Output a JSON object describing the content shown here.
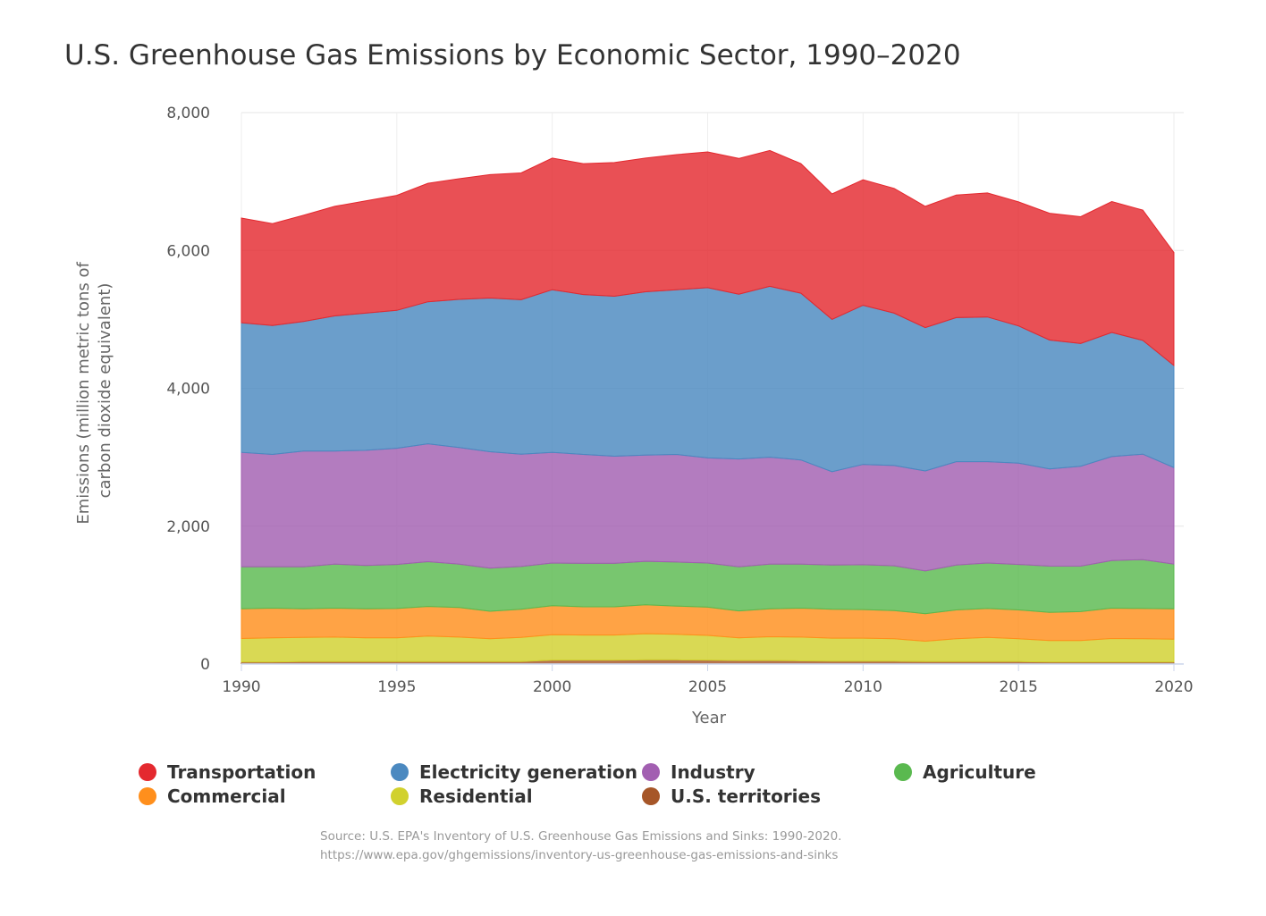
{
  "chart_data": {
    "type": "area",
    "stacked": true,
    "title": "U.S. Greenhouse Gas Emissions by Economic Sector, 1990–2020",
    "xlabel": "Year",
    "ylabel_lines": [
      "Emissions (million metric tons of",
      "carbon dioxide equivalent)"
    ],
    "ylim": [
      0,
      8000
    ],
    "yticks": [
      0,
      2000,
      4000,
      6000,
      8000
    ],
    "ytick_labels": [
      "0",
      "2,000",
      "4,000",
      "6,000",
      "8,000"
    ],
    "xticks": [
      1990,
      1995,
      2000,
      2005,
      2010,
      2015,
      2020
    ],
    "xtick_labels": [
      "1990",
      "1995",
      "2000",
      "2005",
      "2010",
      "2015",
      "2020"
    ],
    "grid": true,
    "legend_position": "bottom",
    "x": [
      1990,
      1991,
      1992,
      1993,
      1994,
      1995,
      1996,
      1997,
      1998,
      1999,
      2000,
      2001,
      2002,
      2003,
      2004,
      2005,
      2006,
      2007,
      2008,
      2009,
      2010,
      2011,
      2012,
      2013,
      2014,
      2015,
      2016,
      2017,
      2018,
      2019,
      2020
    ],
    "series": [
      {
        "name": "U.S. territories",
        "color": "#a65628",
        "values": [
          30,
          30,
          35,
          35,
          35,
          35,
          35,
          35,
          35,
          35,
          55,
          55,
          55,
          60,
          60,
          55,
          50,
          50,
          45,
          40,
          40,
          40,
          35,
          35,
          35,
          35,
          30,
          30,
          30,
          30,
          30
        ]
      },
      {
        "name": "Residential",
        "color": "#d1d12e",
        "values": [
          340,
          350,
          350,
          355,
          345,
          345,
          370,
          355,
          330,
          350,
          370,
          365,
          365,
          380,
          370,
          360,
          330,
          345,
          345,
          335,
          335,
          325,
          295,
          330,
          350,
          330,
          310,
          310,
          340,
          335,
          330
        ]
      },
      {
        "name": "Commercial",
        "color": "#ff8f1c",
        "values": [
          430,
          430,
          415,
          420,
          420,
          425,
          430,
          430,
          400,
          410,
          420,
          410,
          410,
          420,
          410,
          410,
          390,
          405,
          420,
          420,
          415,
          410,
          400,
          420,
          420,
          420,
          410,
          420,
          440,
          440,
          440
        ]
      },
      {
        "name": "Agriculture",
        "color": "#5ab94f",
        "values": [
          610,
          600,
          610,
          640,
          630,
          640,
          650,
          630,
          625,
          620,
          620,
          630,
          630,
          630,
          640,
          640,
          640,
          650,
          640,
          640,
          650,
          650,
          620,
          650,
          660,
          660,
          670,
          660,
          690,
          710,
          650
        ]
      },
      {
        "name": "Industry",
        "color": "#a25fb1",
        "values": [
          1660,
          1630,
          1680,
          1640,
          1670,
          1685,
          1710,
          1690,
          1690,
          1630,
          1605,
          1580,
          1555,
          1540,
          1560,
          1525,
          1565,
          1550,
          1510,
          1355,
          1455,
          1455,
          1450,
          1500,
          1470,
          1470,
          1410,
          1450,
          1510,
          1530,
          1400
        ]
      },
      {
        "name": "Electricity generation",
        "color": "#4b89c0",
        "values": [
          1880,
          1870,
          1880,
          1960,
          1990,
          2000,
          2060,
          2150,
          2230,
          2240,
          2360,
          2320,
          2320,
          2370,
          2390,
          2470,
          2390,
          2480,
          2420,
          2210,
          2310,
          2210,
          2080,
          2090,
          2100,
          1990,
          1870,
          1780,
          1800,
          1650,
          1480
        ]
      },
      {
        "name": "Transportation",
        "color": "#e4292f",
        "values": [
          1520,
          1480,
          1540,
          1590,
          1630,
          1670,
          1720,
          1750,
          1790,
          1840,
          1910,
          1900,
          1940,
          1940,
          1960,
          1970,
          1970,
          1970,
          1880,
          1820,
          1820,
          1810,
          1760,
          1780,
          1800,
          1800,
          1840,
          1840,
          1900,
          1890,
          1640
        ]
      }
    ]
  },
  "legend": {
    "items": [
      {
        "name": "Transportation",
        "color": "#e4292f"
      },
      {
        "name": "Electricity generation",
        "color": "#4b89c0"
      },
      {
        "name": "Industry",
        "color": "#a25fb1"
      },
      {
        "name": "Agriculture",
        "color": "#5ab94f"
      },
      {
        "name": "Commercial",
        "color": "#ff8f1c"
      },
      {
        "name": "Residential",
        "color": "#d1d12e"
      },
      {
        "name": "U.S. territories",
        "color": "#a65628"
      }
    ]
  },
  "source": {
    "line1": "Source: U.S. EPA's Inventory of U.S. Greenhouse Gas Emissions and Sinks: 1990-2020.",
    "line2": "https://www.epa.gov/ghgemissions/inventory-us-greenhouse-gas-emissions-and-sinks"
  }
}
